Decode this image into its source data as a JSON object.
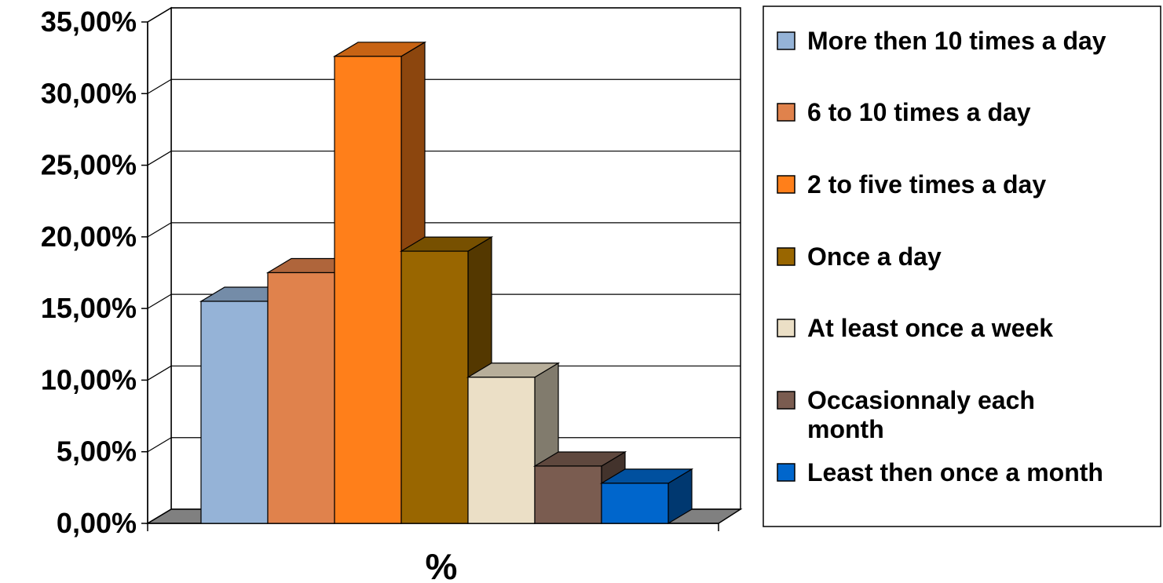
{
  "chart_data": {
    "type": "bar",
    "style": "3d-clustered-column",
    "title": "",
    "xlabel": "%",
    "ylabel": "",
    "ylim": [
      0,
      35
    ],
    "y_ticks": [
      "0,00%",
      "5,00%",
      "10,00%",
      "15,00%",
      "20,00%",
      "25,00%",
      "30,00%",
      "35,00%"
    ],
    "grid": true,
    "legend_position": "right",
    "categories": [
      "%"
    ],
    "series": [
      {
        "name": "More then 10 times a day",
        "values": [
          15.5
        ],
        "color": "#95b3d7"
      },
      {
        "name": "6 to 10 times a day",
        "values": [
          17.5
        ],
        "color": "#e0824c"
      },
      {
        "name": "2 to five times a day",
        "values": [
          32.6
        ],
        "color": "#ff7f1a"
      },
      {
        "name": "Once a day",
        "values": [
          19.0
        ],
        "color": "#996600"
      },
      {
        "name": "At least once a week",
        "values": [
          10.2
        ],
        "color": "#ebdfc6"
      },
      {
        "name": "Occasionnaly each month",
        "values": [
          4.0
        ],
        "color": "#7a5c50"
      },
      {
        "name": "Least then once a month",
        "values": [
          2.8
        ],
        "color": "#0066cc"
      }
    ]
  }
}
